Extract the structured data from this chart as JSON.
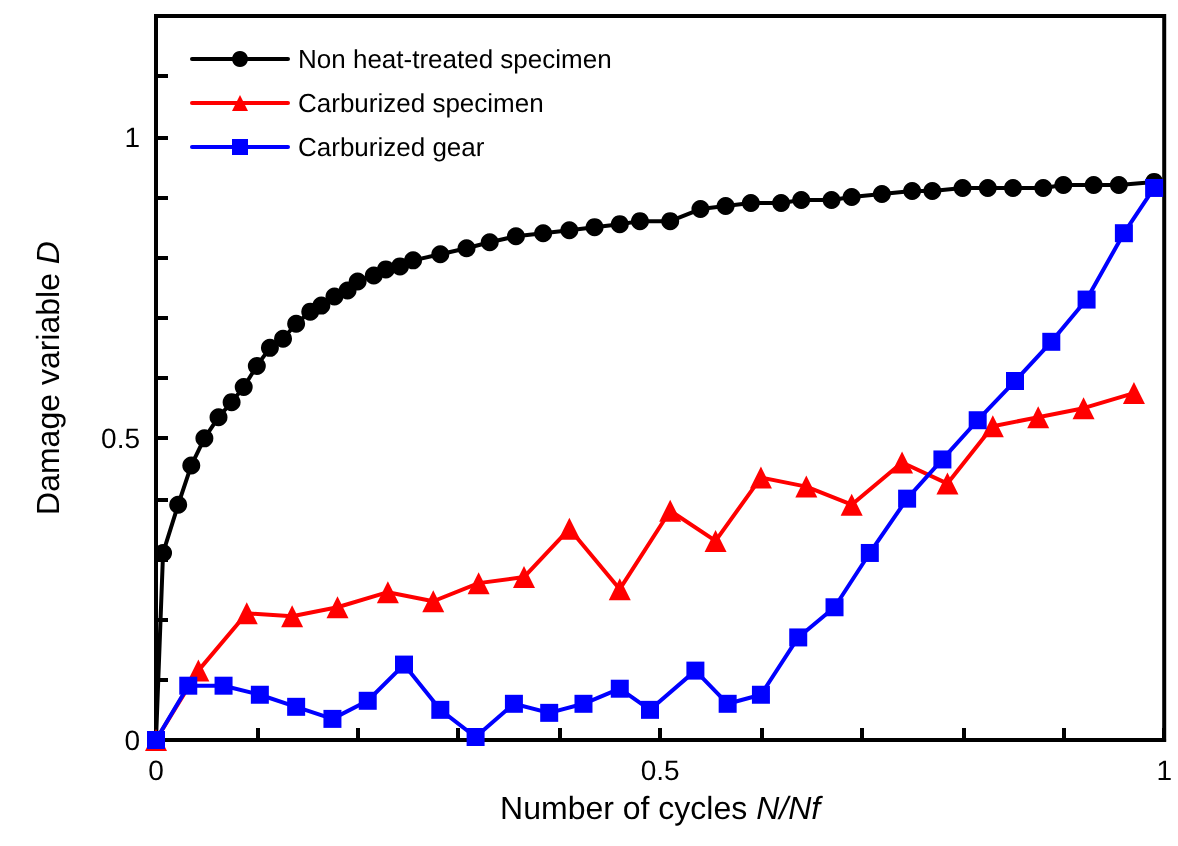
{
  "chart_data": {
    "type": "line",
    "xlabel": "Number of cycles N/Nf",
    "ylabel": "Damage variable D",
    "xlim": [
      0,
      1
    ],
    "ylim": [
      0,
      1.2
    ],
    "xticks": [
      0,
      {
        "value": 0.1,
        "label": null
      },
      {
        "value": 0.2,
        "label": null
      },
      {
        "value": 0.3,
        "label": null
      },
      {
        "value": 0.4,
        "label": null
      },
      0.5,
      {
        "value": 0.6,
        "label": null
      },
      {
        "value": 0.7,
        "label": null
      },
      {
        "value": 0.8,
        "label": null
      },
      {
        "value": 0.9,
        "label": null
      },
      1
    ],
    "yticks": [
      0,
      {
        "value": 0.1,
        "label": null
      },
      {
        "value": 0.2,
        "label": null
      },
      {
        "value": 0.3,
        "label": null
      },
      {
        "value": 0.4,
        "label": null
      },
      0.5,
      {
        "value": 0.6,
        "label": null
      },
      {
        "value": 0.7,
        "label": null
      },
      {
        "value": 0.8,
        "label": null
      },
      {
        "value": 0.9,
        "label": null
      },
      1,
      {
        "value": 1.1,
        "label": null
      }
    ],
    "grid": false,
    "legend": "top left",
    "line_style": "solid",
    "series": [
      {
        "name": "Non heat-treated specimen",
        "color": "#000000",
        "marker": "circle",
        "x": [
          0,
          0.007,
          0.022,
          0.035,
          0.048,
          0.062,
          0.075,
          0.087,
          0.1,
          0.113,
          0.126,
          0.139,
          0.153,
          0.164,
          0.177,
          0.19,
          0.2,
          0.216,
          0.228,
          0.242,
          0.255,
          0.282,
          0.308,
          0.331,
          0.357,
          0.384,
          0.41,
          0.435,
          0.46,
          0.48,
          0.51,
          0.54,
          0.565,
          0.59,
          0.62,
          0.64,
          0.67,
          0.69,
          0.72,
          0.75,
          0.77,
          0.8,
          0.825,
          0.85,
          0.88,
          0.9,
          0.93,
          0.955,
          0.99
        ],
        "values": [
          0,
          0.31,
          0.39,
          0.455,
          0.5,
          0.535,
          0.56,
          0.585,
          0.62,
          0.65,
          0.665,
          0.69,
          0.71,
          0.72,
          0.735,
          0.745,
          0.76,
          0.77,
          0.78,
          0.785,
          0.795,
          0.805,
          0.815,
          0.825,
          0.835,
          0.84,
          0.845,
          0.85,
          0.855,
          0.86,
          0.86,
          0.88,
          0.885,
          0.89,
          0.89,
          0.895,
          0.895,
          0.9,
          0.905,
          0.91,
          0.91,
          0.915,
          0.915,
          0.915,
          0.915,
          0.92,
          0.92,
          0.92,
          0.925
        ]
      },
      {
        "name": "Carburized specimen",
        "color": "#ff0000",
        "marker": "triangle",
        "x": [
          0,
          0.042,
          0.09,
          0.135,
          0.18,
          0.23,
          0.275,
          0.32,
          0.365,
          0.41,
          0.46,
          0.51,
          0.555,
          0.6,
          0.645,
          0.69,
          0.74,
          0.785,
          0.83,
          0.875,
          0.92,
          0.97
        ],
        "values": [
          0,
          0.115,
          0.21,
          0.205,
          0.22,
          0.245,
          0.23,
          0.26,
          0.27,
          0.35,
          0.25,
          0.38,
          0.33,
          0.435,
          0.42,
          0.39,
          0.46,
          0.425,
          0.52,
          0.535,
          0.55,
          0.575
        ]
      },
      {
        "name": "Carburized gear",
        "color": "#0000ff",
        "marker": "square",
        "x": [
          0,
          0.032,
          0.067,
          0.103,
          0.139,
          0.175,
          0.21,
          0.246,
          0.282,
          0.317,
          0.355,
          0.39,
          0.424,
          0.46,
          0.49,
          0.535,
          0.567,
          0.6,
          0.637,
          0.673,
          0.708,
          0.745,
          0.78,
          0.815,
          0.852,
          0.888,
          0.923,
          0.96,
          0.99
        ],
        "values": [
          0,
          0.09,
          0.09,
          0.075,
          0.055,
          0.035,
          0.065,
          0.125,
          0.05,
          0.005,
          0.06,
          0.045,
          0.06,
          0.085,
          0.05,
          0.115,
          0.06,
          0.075,
          0.17,
          0.22,
          0.31,
          0.4,
          0.465,
          0.53,
          0.595,
          0.66,
          0.73,
          0.84,
          0.915
        ]
      }
    ]
  }
}
